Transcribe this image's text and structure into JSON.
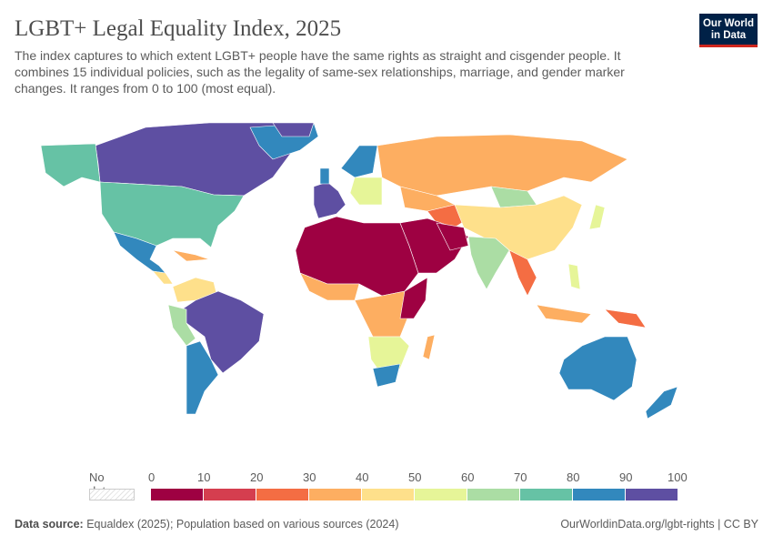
{
  "header": {
    "title": "LGBT+ Legal Equality Index, 2025",
    "subtitle": "The index captures to which extent LGBT+ people have the same rights as straight and cisgender people. It combines 15 individual policies, such as the legality of same-sex relationships, marriage, and gender marker changes. It ranges from 0 to 100 (most equal).",
    "logo_line1": "Our World",
    "logo_line2": "in Data"
  },
  "legend": {
    "no_data_label": "No data",
    "ticks": [
      "0",
      "10",
      "20",
      "30",
      "40",
      "50",
      "60",
      "70",
      "80",
      "90",
      "100"
    ],
    "colors": [
      "#9e0142",
      "#d53e4f",
      "#f46d43",
      "#fdae61",
      "#fee08b",
      "#e6f598",
      "#abdda4",
      "#66c2a5",
      "#3288bd",
      "#5e4fa2"
    ]
  },
  "footer": {
    "source_label": "Data source:",
    "source_text": "Equaldex (2025); Population based on various sources (2024)",
    "url_text": "OurWorldinData.org/lgbt-rights | CC BY"
  }
}
